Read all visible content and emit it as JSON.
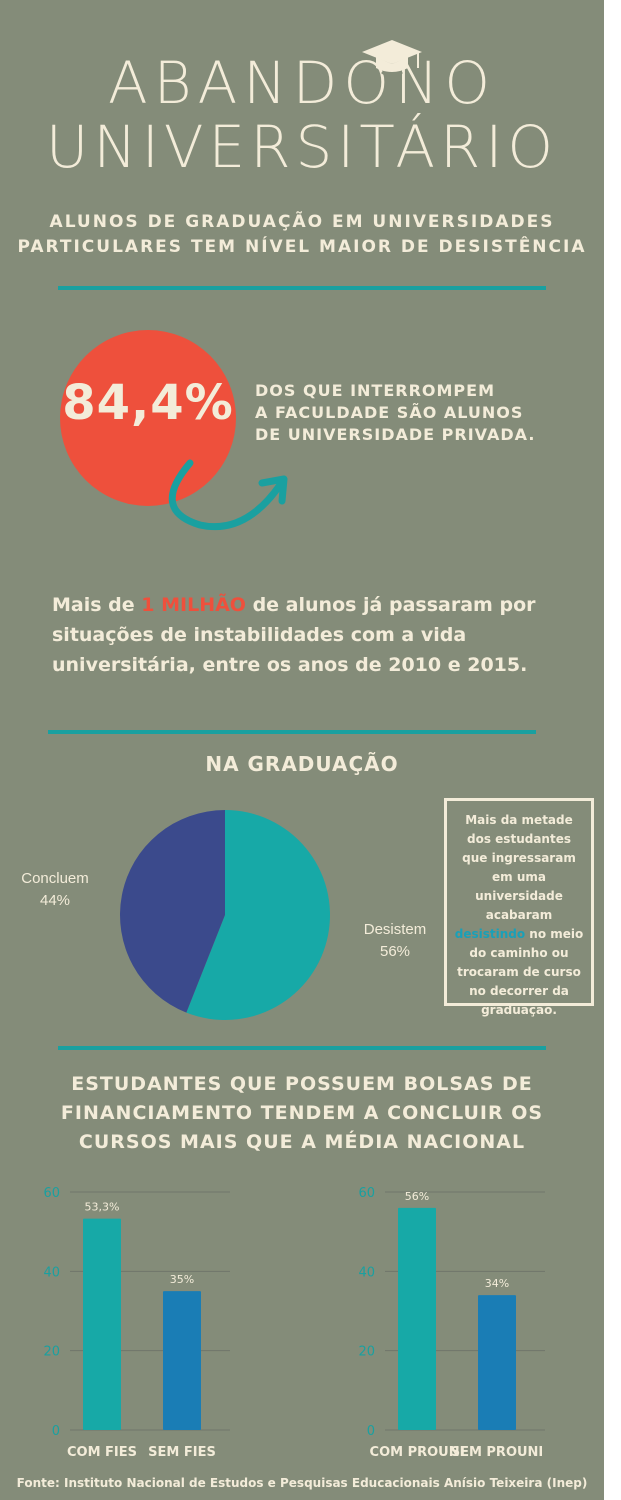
{
  "title": {
    "line1": "ABANDONO",
    "line2": "UNIVERSITÁRIO"
  },
  "subtitle": [
    "ALUNOS DE GRADUAÇÃO EM UNIVERSIDADES",
    "PARTICULARES TEM NÍVEL MAIOR DE DESISTÊNCIA"
  ],
  "highlight": {
    "value": "84,4%",
    "text": [
      "DOS QUE INTERROMPEM",
      "A FACULDADE SÃO ALUNOS",
      "DE UNIVERSIDADE PRIVADA."
    ]
  },
  "milhao": {
    "before": "Mais de ",
    "highlight": "1 MILHÃO",
    "after": " de alunos já passaram por situações de instabilidades com a vida universitária, entre os anos de 2010 e 2015."
  },
  "graduacao": {
    "heading": "NA GRADUAÇÃO",
    "box": {
      "before": "Mais da metade dos estudantes que ingressaram em uma universidade acabaram ",
      "highlight": "desistindo",
      "after": " no meio do caminho ou trocaram de curso no decorrer da graduação."
    }
  },
  "bolsas": {
    "heading": [
      "ESTUDANTES QUE POSSUEM BOLSAS DE",
      "FINANCIAMENTO TENDEM A CONCLUIR OS",
      "CURSOS MAIS QUE A MÉDIA NACIONAL"
    ]
  },
  "source": "Fonte: Instituto Nacional de Estudos e Pesquisas Educacionais Anísio Teixeira (Inep)",
  "colors": {
    "background": "#848c79",
    "cream": "#f3ecd9",
    "accent_red": "#ee503c",
    "teal": "#1aa0a0",
    "navy": "#3b4a8c",
    "blue": "#1a7db5"
  },
  "chart_data": [
    {
      "type": "pie",
      "categories": [
        "Concluem",
        "Desistem"
      ],
      "values": [
        44,
        56
      ],
      "labels": [
        "44%",
        "56%"
      ],
      "colors": [
        "#3b4a8c",
        "#17a9a7"
      ]
    },
    {
      "type": "bar",
      "categories": [
        "COM FIES",
        "SEM FIES"
      ],
      "values": [
        53.3,
        35
      ],
      "labels": [
        "53,3%",
        "35%"
      ],
      "colors": [
        "#17a9a7",
        "#1a7db5"
      ],
      "ylim": [
        0,
        60
      ],
      "yticks": [
        0,
        20,
        40,
        60
      ],
      "ytick_labels": [
        "0",
        "20",
        "40",
        "60"
      ],
      "grid": true
    },
    {
      "type": "bar",
      "categories": [
        "COM PROUNI",
        "SEM PROUNI"
      ],
      "values": [
        56,
        34
      ],
      "labels": [
        "56%",
        "34%"
      ],
      "colors": [
        "#17a9a7",
        "#1a7db5"
      ],
      "ylim": [
        0,
        60
      ],
      "yticks": [
        0,
        20,
        40,
        60
      ],
      "ytick_labels": [
        "0",
        "20",
        "40",
        "60"
      ],
      "grid": true
    }
  ]
}
